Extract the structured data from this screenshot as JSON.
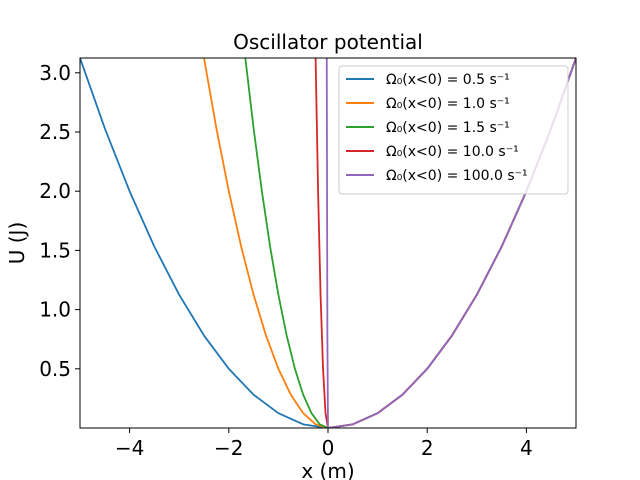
{
  "chart_data": {
    "type": "line",
    "title": "Oscillator potential",
    "xlabel": "x (m)",
    "ylabel": "U (J)",
    "xlim": [
      -5,
      5
    ],
    "ylim": [
      0,
      3.125
    ],
    "x_ticks": [
      -4,
      -2,
      0,
      2,
      4
    ],
    "x_tick_labels": [
      "−4",
      "−2",
      "0",
      "2",
      "4"
    ],
    "y_ticks": [
      0.5,
      1.0,
      1.5,
      2.0,
      2.5,
      3.0
    ],
    "y_tick_labels": [
      "0.5",
      "1.0",
      "1.5",
      "2.0",
      "2.5",
      "3.0"
    ],
    "grid": false,
    "legend_position": "top-right",
    "series": [
      {
        "name": "Ω₀(x<0) = 0.5 s⁻¹",
        "color": "#1f77b4",
        "x": [
          -5,
          -4.5,
          -4,
          -3.5,
          -3,
          -2.5,
          -2,
          -1.5,
          -1,
          -0.5,
          0,
          0.5,
          1,
          1.5,
          2,
          2.5,
          3,
          3.5,
          4,
          4.5,
          5
        ],
        "y": [
          3.125,
          2.531,
          2.0,
          1.531,
          1.125,
          0.781,
          0.5,
          0.281,
          0.125,
          0.031,
          0,
          0.031,
          0.125,
          0.281,
          0.5,
          0.781,
          1.125,
          1.531,
          2.0,
          2.531,
          3.125
        ]
      },
      {
        "name": "Ω₀(x<0) = 1.0 s⁻¹",
        "color": "#ff7f0e",
        "x": [
          -2.5,
          -2.25,
          -2,
          -1.75,
          -1.5,
          -1.25,
          -1,
          -0.75,
          -0.5,
          -0.25,
          0,
          0.5,
          1,
          1.5,
          2,
          2.5,
          3,
          3.5,
          4,
          4.5,
          5
        ],
        "y": [
          3.125,
          2.531,
          2.0,
          1.531,
          1.125,
          0.781,
          0.5,
          0.281,
          0.125,
          0.031,
          0,
          0.031,
          0.125,
          0.281,
          0.5,
          0.781,
          1.125,
          1.531,
          2.0,
          2.531,
          3.125
        ]
      },
      {
        "name": "Ω₀(x<0) = 1.5 s⁻¹",
        "color": "#2ca02c",
        "x": [
          -1.667,
          -1.5,
          -1.333,
          -1.167,
          -1,
          -0.833,
          -0.667,
          -0.5,
          -0.333,
          -0.167,
          0,
          0.5,
          1,
          1.5,
          2,
          2.5,
          3,
          3.5,
          4,
          4.5,
          5
        ],
        "y": [
          3.125,
          2.531,
          2.0,
          1.531,
          1.125,
          0.781,
          0.5,
          0.281,
          0.125,
          0.031,
          0,
          0.031,
          0.125,
          0.281,
          0.5,
          0.781,
          1.125,
          1.531,
          2.0,
          2.531,
          3.125
        ]
      },
      {
        "name": "Ω₀(x<0) = 10.0 s⁻¹",
        "color": "#d62728",
        "x": [
          -0.25,
          -0.2,
          -0.15,
          -0.1,
          -0.05,
          0,
          0.5,
          1,
          1.5,
          2,
          2.5,
          3,
          3.5,
          4,
          4.5,
          5
        ],
        "y": [
          3.125,
          2.0,
          1.125,
          0.5,
          0.125,
          0,
          0.031,
          0.125,
          0.281,
          0.5,
          0.781,
          1.125,
          1.531,
          2.0,
          2.531,
          3.125
        ]
      },
      {
        "name": "Ω₀(x<0) = 100.0 s⁻¹",
        "color": "#9467bd",
        "x": [
          -0.025,
          -0.0125,
          0,
          0.5,
          1,
          1.5,
          2,
          2.5,
          3,
          3.5,
          4,
          4.5,
          5
        ],
        "y": [
          3.125,
          0.781,
          0,
          0.031,
          0.125,
          0.281,
          0.5,
          0.781,
          1.125,
          1.531,
          2.0,
          2.531,
          3.125
        ]
      }
    ]
  }
}
